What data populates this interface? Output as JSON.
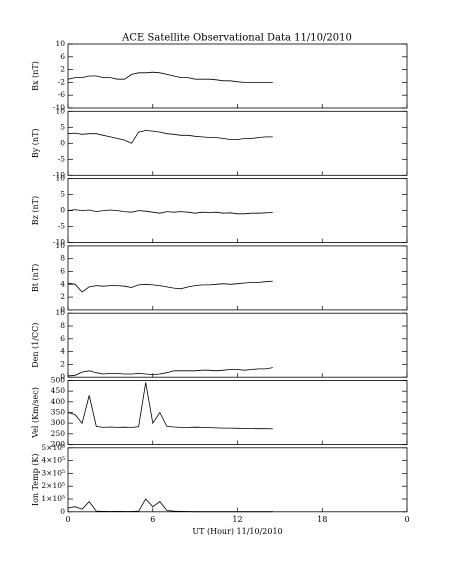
{
  "title": "ACE Satellite Observational Data   11/10/2010",
  "chart_data": [
    {
      "type": "line",
      "ylabel": "Bx (nT)",
      "ylim": [
        -10,
        10
      ],
      "yticks": [
        -10,
        -6,
        -2,
        2,
        6,
        10
      ],
      "xlim": [
        0,
        24
      ],
      "x": [
        0,
        0.5,
        1,
        1.5,
        2,
        2.5,
        3,
        3.5,
        4,
        4.5,
        5,
        5.5,
        6,
        6.5,
        7,
        7.5,
        8,
        8.5,
        9,
        9.5,
        10,
        10.5,
        11,
        11.5,
        12,
        12.5,
        13,
        13.5,
        14,
        14.5
      ],
      "values": [
        -1,
        -0.5,
        -0.5,
        0,
        0,
        -0.5,
        -0.5,
        -1,
        -1,
        0.5,
        1,
        1,
        1.2,
        1,
        0.5,
        0,
        -0.5,
        -0.5,
        -1,
        -1,
        -1,
        -1.2,
        -1.5,
        -1.5,
        -1.8,
        -2,
        -2,
        -2,
        -2,
        -2
      ]
    },
    {
      "type": "line",
      "ylabel": "By (nT)",
      "ylim": [
        -10,
        10
      ],
      "yticks": [
        -10,
        -5,
        0,
        5,
        10
      ],
      "xlim": [
        0,
        24
      ],
      "x": [
        0,
        0.5,
        1,
        1.5,
        2,
        2.5,
        3,
        3.5,
        4,
        4.5,
        5,
        5.5,
        6,
        6.5,
        7,
        7.5,
        8,
        8.5,
        9,
        9.5,
        10,
        10.5,
        11,
        11.5,
        12,
        12.5,
        13,
        13.5,
        14,
        14.5
      ],
      "values": [
        3,
        3.2,
        2.8,
        3,
        3,
        2.5,
        2,
        1.5,
        1,
        0,
        3.5,
        4,
        3.8,
        3.5,
        3,
        2.8,
        2.5,
        2.5,
        2.2,
        2,
        1.8,
        1.8,
        1.5,
        1.2,
        1.2,
        1.5,
        1.5,
        1.8,
        2,
        2
      ]
    },
    {
      "type": "line",
      "ylabel": "Bz (nT)",
      "ylim": [
        -10,
        10
      ],
      "yticks": [
        -10,
        -5,
        0,
        5,
        10
      ],
      "xlim": [
        0,
        24
      ],
      "x": [
        0,
        0.5,
        1,
        1.5,
        2,
        2.5,
        3,
        3.5,
        4,
        4.5,
        5,
        5.5,
        6,
        6.5,
        7,
        7.5,
        8,
        8.5,
        9,
        9.5,
        10,
        10.5,
        11,
        11.5,
        12,
        12.5,
        13,
        13.5,
        14,
        14.5
      ],
      "values": [
        0,
        0.3,
        0,
        0.2,
        -0.3,
        0,
        0.2,
        0,
        -0.3,
        -0.5,
        0,
        -0.2,
        -0.5,
        -0.8,
        -0.3,
        -0.5,
        -0.3,
        -0.5,
        -0.8,
        -0.5,
        -0.6,
        -0.5,
        -0.8,
        -0.7,
        -1,
        -1,
        -0.8,
        -0.8,
        -0.7,
        -0.6
      ]
    },
    {
      "type": "line",
      "ylabel": "Bt (nT)",
      "ylim": [
        0,
        10
      ],
      "yticks": [
        0,
        2,
        4,
        6,
        8,
        10
      ],
      "xlim": [
        0,
        24
      ],
      "x": [
        0,
        0.5,
        1,
        1.5,
        2,
        2.5,
        3,
        3.5,
        4,
        4.5,
        5,
        5.5,
        6,
        6.5,
        7,
        7.5,
        8,
        8.5,
        9,
        9.5,
        10,
        10.5,
        11,
        11.5,
        12,
        12.5,
        13,
        13.5,
        14,
        14.5
      ],
      "values": [
        4.2,
        4,
        2.8,
        3.6,
        3.8,
        3.7,
        3.8,
        3.8,
        3.7,
        3.5,
        3.9,
        4,
        3.9,
        3.8,
        3.6,
        3.4,
        3.3,
        3.6,
        3.8,
        3.9,
        3.9,
        4,
        4.1,
        4,
        4.1,
        4.2,
        4.3,
        4.3,
        4.4,
        4.5
      ]
    },
    {
      "type": "line",
      "ylabel": "Den (1/CC)",
      "ylim": [
        0,
        10
      ],
      "yticks": [
        0,
        2,
        4,
        6,
        8,
        10
      ],
      "xlim": [
        0,
        24
      ],
      "x": [
        0,
        0.5,
        1,
        1.5,
        2,
        2.5,
        3,
        3.5,
        4,
        4.5,
        5,
        5.5,
        6,
        6.5,
        7,
        7.5,
        8,
        8.5,
        9,
        9.5,
        10,
        10.5,
        11,
        11.5,
        12,
        12.5,
        13,
        13.5,
        14,
        14.5
      ],
      "values": [
        0.2,
        0.3,
        0.8,
        1,
        0.7,
        0.5,
        0.6,
        0.6,
        0.5,
        0.5,
        0.6,
        0.5,
        0.4,
        0.5,
        0.7,
        1,
        1,
        1,
        1,
        1.1,
        1.1,
        1,
        1.1,
        1.2,
        1.2,
        1.1,
        1.2,
        1.3,
        1.3,
        1.5
      ]
    },
    {
      "type": "line",
      "ylabel": "Vel (Km/sec)",
      "ylim": [
        200,
        500
      ],
      "yticks": [
        200,
        250,
        300,
        350,
        400,
        450,
        500
      ],
      "xlim": [
        0,
        24
      ],
      "x": [
        0,
        0.5,
        1,
        1.5,
        2,
        2.5,
        3,
        3.5,
        4,
        4.5,
        5,
        5.5,
        6,
        6.5,
        7,
        7.5,
        8,
        8.5,
        9,
        9.5,
        10,
        10.5,
        11,
        11.5,
        12,
        12.5,
        13,
        13.5,
        14,
        14.5
      ],
      "values": [
        350,
        340,
        300,
        430,
        285,
        280,
        282,
        280,
        281,
        280,
        283,
        490,
        300,
        350,
        285,
        282,
        280,
        280,
        281,
        280,
        279,
        278,
        277,
        277,
        276,
        275,
        275,
        274,
        274,
        273
      ]
    },
    {
      "type": "line",
      "ylabel": "Ion Temp (K)",
      "ylim": [
        0,
        500000
      ],
      "yticks": [
        0,
        {
          "value": 100000,
          "label": "1×10⁵"
        },
        {
          "value": 200000,
          "label": "2×10⁵"
        },
        {
          "value": 300000,
          "label": "3×10⁵"
        },
        {
          "value": 400000,
          "label": "4×10⁵"
        },
        {
          "value": 500000,
          "label": "5×10⁵"
        }
      ],
      "xlim": [
        0,
        24
      ],
      "xticks": [
        0,
        6,
        12,
        18,
        {
          "value": 24,
          "label": "0"
        }
      ],
      "xlabel": "UT (Hour)  11/10/2010",
      "x": [
        0,
        0.5,
        1,
        1.5,
        2,
        2.5,
        3,
        3.5,
        4,
        4.5,
        5,
        5.5,
        6,
        6.5,
        7,
        7.5,
        8,
        8.5,
        9,
        9.5,
        10,
        10.5,
        11,
        11.5,
        12,
        12.5,
        13,
        13.5,
        14,
        14.5
      ],
      "values": [
        30000,
        40000,
        20000,
        80000,
        5000,
        3000,
        2000,
        3000,
        2000,
        2000,
        5000,
        100000,
        40000,
        80000,
        10000,
        5000,
        3000,
        2000,
        1000,
        1000,
        1000,
        1000,
        1000,
        1000,
        1000,
        1000,
        1000,
        1000,
        1000,
        1000
      ]
    }
  ]
}
